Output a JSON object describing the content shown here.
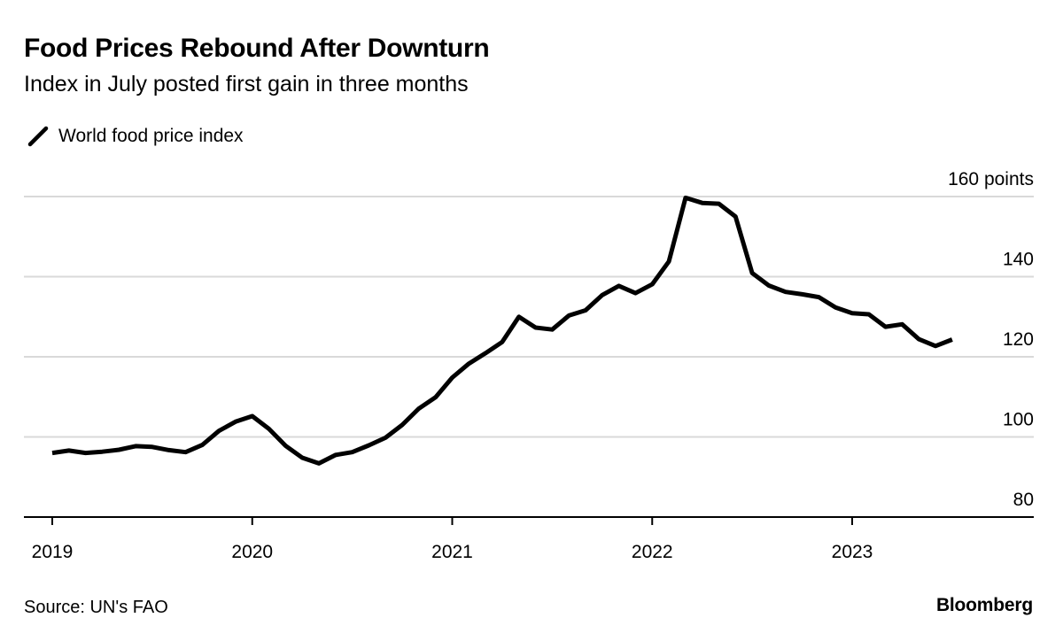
{
  "header": {
    "title": "Food Prices Rebound After Downturn",
    "subtitle": "Index in July posted first gain in three months"
  },
  "legend": {
    "label": "World food price index",
    "icon": "line-swatch-icon"
  },
  "footer": {
    "source": "Source: UN's FAO",
    "brand": "Bloomberg"
  },
  "colors": {
    "line": "#000000",
    "grid": "#d9d9d9",
    "axis": "#000000"
  },
  "chart_data": {
    "type": "line",
    "title": "Food Prices Rebound After Downturn",
    "subtitle": "Index in July posted first gain in three months",
    "xlabel": "",
    "ylabel": "",
    "ylim": [
      80,
      160
    ],
    "y_ticks": [
      80,
      100,
      120,
      140,
      160
    ],
    "y_tick_labels": [
      "80",
      "100",
      "120",
      "140",
      "160 points"
    ],
    "x_ticks": [
      "2019-01",
      "2020-01",
      "2021-01",
      "2022-01",
      "2023-01"
    ],
    "x_tick_labels": [
      "2019",
      "2020",
      "2021",
      "2022",
      "2023"
    ],
    "grid": true,
    "legend_position": "top-left",
    "series": [
      {
        "name": "World food price index",
        "x": [
          "2019-01",
          "2019-02",
          "2019-03",
          "2019-04",
          "2019-05",
          "2019-06",
          "2019-07",
          "2019-08",
          "2019-09",
          "2019-10",
          "2019-11",
          "2019-12",
          "2020-01",
          "2020-02",
          "2020-03",
          "2020-04",
          "2020-05",
          "2020-06",
          "2020-07",
          "2020-08",
          "2020-09",
          "2020-10",
          "2020-11",
          "2020-12",
          "2021-01",
          "2021-02",
          "2021-03",
          "2021-04",
          "2021-05",
          "2021-06",
          "2021-07",
          "2021-08",
          "2021-09",
          "2021-10",
          "2021-11",
          "2021-12",
          "2022-01",
          "2022-02",
          "2022-03",
          "2022-04",
          "2022-05",
          "2022-06",
          "2022-07",
          "2022-08",
          "2022-09",
          "2022-10",
          "2022-11",
          "2022-12",
          "2023-01",
          "2023-02",
          "2023-03",
          "2023-04",
          "2023-05",
          "2023-06",
          "2023-07"
        ],
        "values": [
          96.0,
          96.6,
          96.0,
          96.3,
          96.8,
          97.7,
          97.5,
          96.7,
          96.2,
          98.0,
          101.5,
          103.8,
          105.2,
          102.0,
          97.8,
          94.8,
          93.4,
          95.5,
          96.2,
          97.9,
          99.8,
          103.0,
          107.1,
          109.9,
          114.8,
          118.3,
          120.9,
          123.7,
          130.0,
          127.3,
          126.8,
          130.3,
          131.6,
          135.4,
          137.7,
          135.9,
          138.1,
          143.8,
          159.7,
          158.4,
          158.2,
          155.0,
          140.9,
          137.8,
          136.2,
          135.6,
          134.9,
          132.3,
          130.9,
          130.6,
          127.5,
          128.1,
          124.4,
          122.7,
          124.3
        ]
      }
    ]
  }
}
